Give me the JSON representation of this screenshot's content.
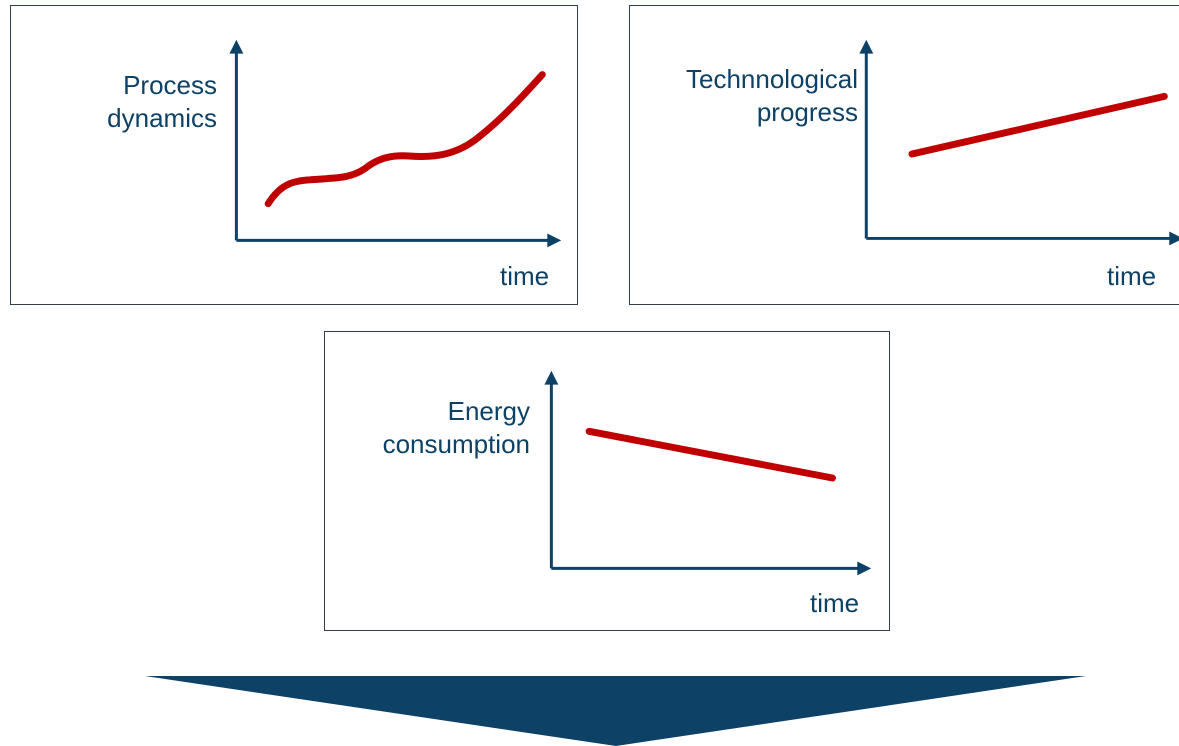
{
  "colors": {
    "axis": "#0d4166",
    "curve": "#c00000",
    "label": "#0d4166",
    "big_arrow": "#0d4166",
    "panel_border": "#2f3e4c"
  },
  "panels": {
    "process": {
      "ylabel_lines": [
        "Process",
        "dynamics"
      ],
      "xlabel": "time",
      "trend": "rising with a plateau, then accelerating"
    },
    "tech": {
      "ylabel_lines": [
        "Technnological",
        "progress"
      ],
      "xlabel": "time",
      "trend": "steadily rising"
    },
    "energy": {
      "ylabel_lines": [
        "Energy",
        "consumption"
      ],
      "xlabel": "time",
      "trend": "steadily falling"
    }
  },
  "bottom_arrow": {
    "icon": "down-arrow-icon"
  }
}
